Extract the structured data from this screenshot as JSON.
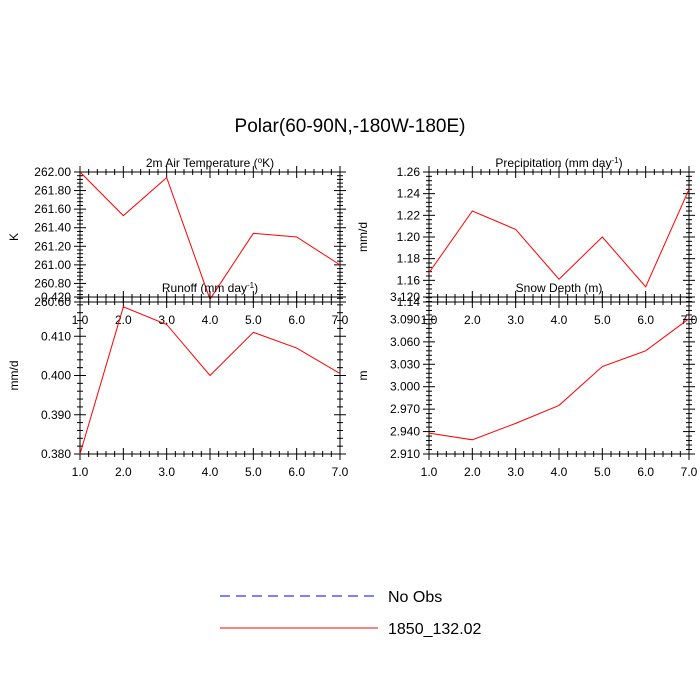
{
  "title": "Polar(60-90N,-180W-180E)",
  "legend": [
    {
      "label": "No Obs",
      "color": "#0000ff",
      "dash": true
    },
    {
      "label": "1850_132.02",
      "color": "#ff0000",
      "dash": false
    }
  ],
  "chart_data": [
    {
      "type": "line",
      "title": "2m Air Temperature (",
      "title_sup": "o",
      "title_tail": "K)",
      "xlabel": "",
      "ylabel": "K",
      "x": [
        1,
        2,
        3,
        4,
        5,
        6,
        7
      ],
      "xlim": [
        1,
        7
      ],
      "x_ticks": [
        1,
        2,
        3,
        4,
        5,
        6,
        7
      ],
      "x_ticklabels": [
        "1.0",
        "2.0",
        "3.0",
        "4.0",
        "5.0",
        "6.0",
        "7.0"
      ],
      "ylim": [
        260.6,
        262.0
      ],
      "y_ticks": [
        260.6,
        260.8,
        261.0,
        261.2,
        261.4,
        261.6,
        261.8,
        262.0
      ],
      "y_ticklabels": [
        "260.60",
        "260.80",
        "261.00",
        "261.20",
        "261.40",
        "261.60",
        "261.80",
        "262.00"
      ],
      "series": [
        {
          "name": "1850_132.02",
          "color": "#ff0000",
          "values": [
            262.0,
            261.53,
            261.94,
            260.63,
            261.34,
            261.3,
            261.0
          ]
        }
      ]
    },
    {
      "type": "line",
      "title": "Precipitation (mm day",
      "title_sup": "-1",
      "title_tail": ")",
      "xlabel": "",
      "ylabel": "mm/d",
      "x": [
        1,
        2,
        3,
        4,
        5,
        6,
        7
      ],
      "xlim": [
        1,
        7
      ],
      "x_ticks": [
        1,
        2,
        3,
        4,
        5,
        6,
        7
      ],
      "x_ticklabels": [
        "1.0",
        "2.0",
        "3.0",
        "4.0",
        "5.0",
        "6.0",
        "7.0"
      ],
      "ylim": [
        1.14,
        1.26
      ],
      "y_ticks": [
        1.14,
        1.16,
        1.18,
        1.2,
        1.22,
        1.24,
        1.26
      ],
      "y_ticklabels": [
        "1.14",
        "1.16",
        "1.18",
        "1.20",
        "1.22",
        "1.24",
        "1.26"
      ],
      "series": [
        {
          "name": "1850_132.02",
          "color": "#ff0000",
          "values": [
            1.167,
            1.224,
            1.207,
            1.161,
            1.2,
            1.154,
            1.244
          ]
        }
      ]
    },
    {
      "type": "line",
      "title": "Runoff (mm day",
      "title_sup": "-1",
      "title_tail": ")",
      "xlabel": "",
      "ylabel": "mm/d",
      "x": [
        1,
        2,
        3,
        4,
        5,
        6,
        7
      ],
      "xlim": [
        1,
        7
      ],
      "x_ticks": [
        1,
        2,
        3,
        4,
        5,
        6,
        7
      ],
      "x_ticklabels": [
        "1.0",
        "2.0",
        "3.0",
        "4.0",
        "5.0",
        "6.0",
        "7.0"
      ],
      "ylim": [
        0.38,
        0.42
      ],
      "y_ticks": [
        0.38,
        0.39,
        0.4,
        0.41,
        0.42
      ],
      "y_ticklabels": [
        "0.380",
        "0.390",
        "0.400",
        "0.410",
        "0.420"
      ],
      "series": [
        {
          "name": "1850_132.02",
          "color": "#ff0000",
          "values": [
            0.38,
            0.4175,
            0.413,
            0.4,
            0.411,
            0.407,
            0.4005
          ]
        }
      ]
    },
    {
      "type": "line",
      "title": "Snow Depth (m)",
      "title_sup": "",
      "title_tail": "",
      "xlabel": "",
      "ylabel": "m",
      "x": [
        1,
        2,
        3,
        4,
        5,
        6,
        7
      ],
      "xlim": [
        1,
        7
      ],
      "x_ticks": [
        1,
        2,
        3,
        4,
        5,
        6,
        7
      ],
      "x_ticklabels": [
        "1.0",
        "2.0",
        "3.0",
        "4.0",
        "5.0",
        "6.0",
        "7.0"
      ],
      "ylim": [
        2.91,
        3.12
      ],
      "y_ticks": [
        2.91,
        2.94,
        2.97,
        3.0,
        3.03,
        3.06,
        3.09,
        3.12
      ],
      "y_ticklabels": [
        "2.910",
        "2.940",
        "2.970",
        "3.000",
        "3.030",
        "3.060",
        "3.090",
        "3.120"
      ],
      "series": [
        {
          "name": "1850_132.02",
          "color": "#ff0000",
          "values": [
            2.938,
            2.929,
            2.951,
            2.975,
            3.027,
            3.048,
            3.091
          ]
        }
      ]
    }
  ]
}
